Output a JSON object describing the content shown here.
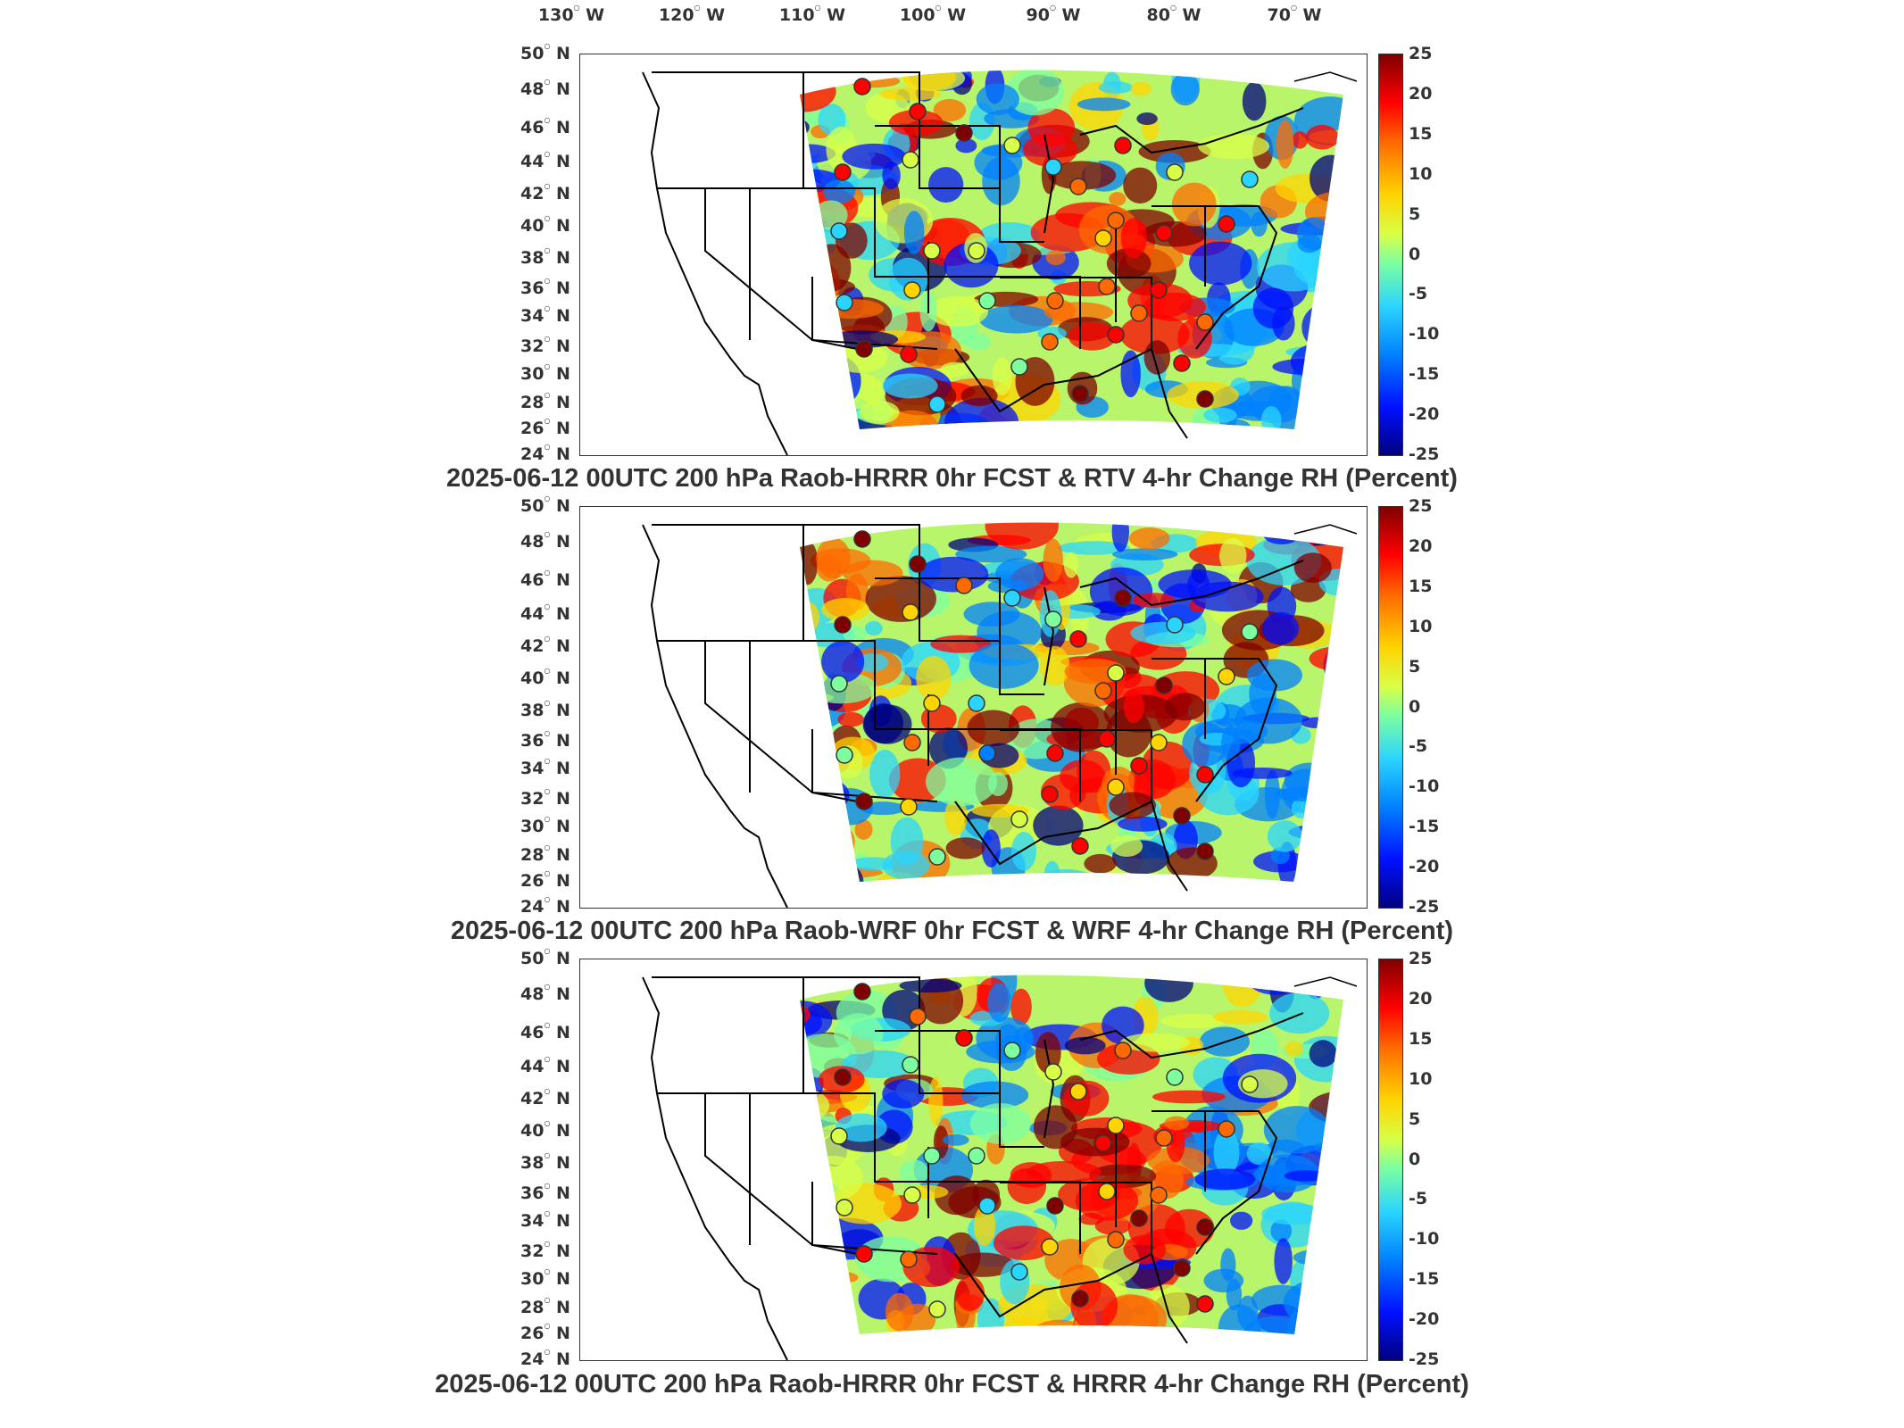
{
  "longitude_labels": [
    "130",
    "120",
    "110",
    "100",
    "90",
    "80",
    "70"
  ],
  "longitude_suffix": "W",
  "latitude_labels": [
    "50",
    "48",
    "46",
    "44",
    "42",
    "40",
    "38",
    "36",
    "34",
    "32",
    "30",
    "28",
    "26",
    "24"
  ],
  "latitude_suffix": "N",
  "colorbar_ticks": [
    "25",
    "20",
    "15",
    "10",
    "5",
    "0",
    "-5",
    "-10",
    "-15",
    "-20",
    "-25"
  ],
  "panels": [
    {
      "title": "2025-06-12 00UTC 200 hPa Raob-HRRR 0hr FCST & RTV 4-hr Change RH (Percent)"
    },
    {
      "title": "2025-06-12 00UTC 200 hPa Raob-WRF 0hr FCST & WRF 4-hr Change RH (Percent)"
    },
    {
      "title": "2025-06-12 00UTC 200 hPa Raob-HRRR 0hr FCST & HRRR 4-hr Change RH (Percent)"
    }
  ]
}
